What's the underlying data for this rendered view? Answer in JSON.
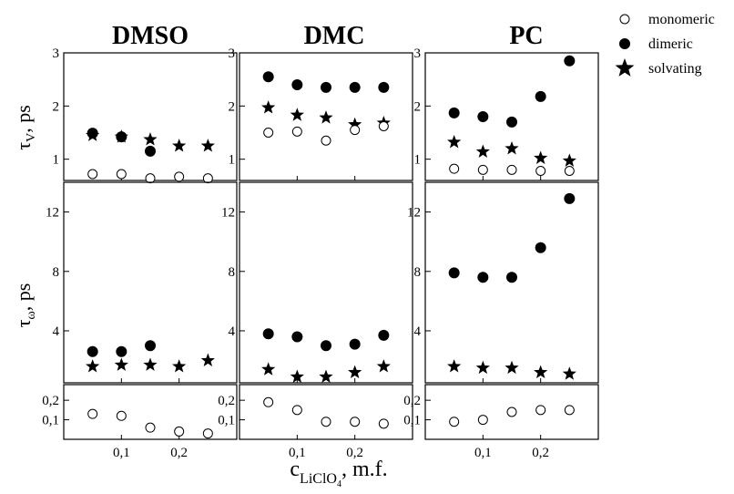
{
  "chart_data": {
    "type": "scatter",
    "panels": [
      "DMSO",
      "DMC",
      "PC"
    ],
    "x": [
      0.05,
      0.1,
      0.15,
      0.2,
      0.25
    ],
    "x_ticks": [
      {
        "value": 0.1,
        "label": "0,1"
      },
      {
        "value": 0.2,
        "label": "0,2"
      }
    ],
    "xlim": [
      0.0,
      0.3
    ],
    "xlabel": "c",
    "xlabel_sub": "LiClO",
    "xlabel_subsub": "4",
    "xlabel_unit": ", m.f.",
    "legend": {
      "placement": "top-right",
      "entries": [
        {
          "key": "monomeric",
          "label": "monomeric",
          "marker": "open-circle"
        },
        {
          "key": "dimeric",
          "label": "dimeric",
          "marker": "filled-circle"
        },
        {
          "key": "solvating",
          "label": "solvating",
          "marker": "star"
        }
      ]
    },
    "rows": [
      {
        "id": "tau_v",
        "ylabel_main": "τ",
        "ylabel_sub": "V",
        "ylabel_unit": ", ps",
        "ylim": [
          0.6,
          3.0
        ],
        "y_ticks": [
          {
            "value": 1,
            "label": "1"
          },
          {
            "value": 2,
            "label": "2"
          },
          {
            "value": 3,
            "label": "3"
          }
        ]
      },
      {
        "id": "tau_w_upper",
        "ylabel_main": "τ",
        "ylabel_sub": "ω",
        "ylabel_unit": ", ps",
        "ylim": [
          0.5,
          14.0
        ],
        "y_ticks": [
          {
            "value": 4,
            "label": "4"
          },
          {
            "value": 8,
            "label": "8"
          },
          {
            "value": 12,
            "label": "12"
          }
        ]
      },
      {
        "id": "tau_w_lower",
        "ylim": [
          0.0,
          0.28
        ],
        "y_ticks": [
          {
            "value": 0.1,
            "label": "0,1"
          },
          {
            "value": 0.2,
            "label": "0,2"
          }
        ]
      }
    ],
    "series": {
      "DMSO": {
        "tau_v": {
          "monomeric": [
            0.72,
            0.72,
            0.64,
            0.67,
            0.64
          ],
          "dimeric": [
            1.49,
            1.42,
            1.15,
            null,
            null
          ],
          "solvating": [
            1.45,
            1.42,
            1.37,
            1.25,
            1.25
          ]
        },
        "tau_w_upper": {
          "dimeric": [
            2.6,
            2.6,
            3.0,
            null,
            null
          ],
          "solvating": [
            1.6,
            1.7,
            1.7,
            1.6,
            2.0
          ]
        },
        "tau_w_lower": {
          "monomeric": [
            0.13,
            0.12,
            0.06,
            0.04,
            0.03
          ]
        }
      },
      "DMC": {
        "tau_v": {
          "monomeric": [
            1.5,
            1.52,
            1.35,
            1.55,
            1.62
          ],
          "dimeric": [
            2.55,
            2.4,
            2.35,
            2.35,
            2.35
          ],
          "solvating": [
            1.97,
            1.83,
            1.78,
            1.65,
            1.68
          ]
        },
        "tau_w_upper": {
          "dimeric": [
            3.8,
            3.6,
            3.0,
            3.1,
            3.7
          ],
          "solvating": [
            1.4,
            0.9,
            0.9,
            1.2,
            1.6
          ]
        },
        "tau_w_lower": {
          "monomeric": [
            0.19,
            0.15,
            0.09,
            0.09,
            0.08
          ]
        }
      },
      "PC": {
        "tau_v": {
          "monomeric": [
            0.82,
            0.8,
            0.8,
            0.78,
            0.78
          ],
          "dimeric": [
            1.87,
            1.8,
            1.7,
            2.18,
            2.85
          ],
          "solvating": [
            1.32,
            1.14,
            1.2,
            1.02,
            0.97
          ]
        },
        "tau_w_upper": {
          "dimeric": [
            7.9,
            7.6,
            7.6,
            9.6,
            12.9
          ],
          "solvating": [
            1.6,
            1.5,
            1.5,
            1.2,
            1.1
          ]
        },
        "tau_w_lower": {
          "monomeric": [
            0.09,
            0.1,
            0.14,
            0.15,
            0.15
          ]
        }
      }
    }
  }
}
